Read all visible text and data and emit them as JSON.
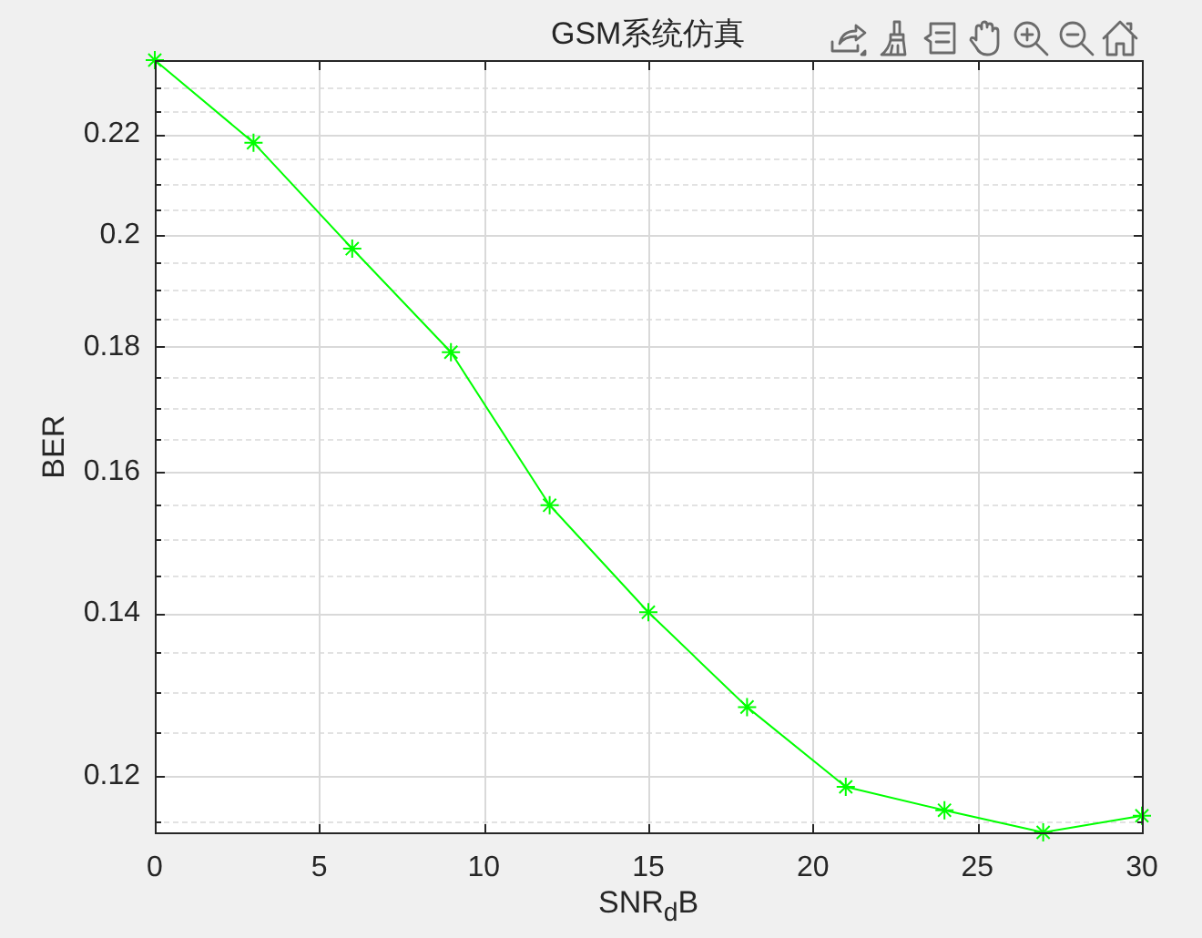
{
  "chart_data": {
    "type": "line",
    "title": "GSM系统仿真",
    "xlabel": "SNR$_{d}$B",
    "ylabel": "BER",
    "x": [
      0,
      3,
      6,
      9,
      12,
      15,
      18,
      21,
      24,
      27,
      30
    ],
    "series": [
      {
        "color": "#00ff00",
        "values": [
          0.236,
          0.2183,
          0.1975,
          0.1791,
          0.155,
          0.1401,
          0.1281,
          0.1188,
          0.1162,
          0.1138,
          0.1156
        ]
      }
    ],
    "xlim": [
      0,
      30
    ],
    "xticks": [
      0,
      5,
      10,
      15,
      20,
      25,
      30
    ],
    "ylim": [
      0.1138,
      0.236
    ],
    "yticks": [
      {
        "value": 0.115,
        "label": null
      },
      0.12,
      {
        "value": 0.125,
        "label": null
      },
      {
        "value": 0.13,
        "label": null
      },
      {
        "value": 0.135,
        "label": null
      },
      0.14,
      {
        "value": 0.145,
        "label": null
      },
      {
        "value": 0.15,
        "label": null
      },
      {
        "value": 0.155,
        "label": null
      },
      0.16,
      {
        "value": 0.165,
        "label": null
      },
      {
        "value": 0.17,
        "label": null
      },
      {
        "value": 0.175,
        "label": null
      },
      0.18,
      {
        "value": 0.185,
        "label": null
      },
      {
        "value": 0.19,
        "label": null
      },
      {
        "value": 0.195,
        "label": null
      },
      0.2,
      {
        "value": 0.205,
        "label": null
      },
      {
        "value": 0.21,
        "label": null
      },
      {
        "value": 0.215,
        "label": null
      },
      0.22,
      {
        "value": 0.225,
        "label": null
      },
      {
        "value": 0.23,
        "label": null
      }
    ],
    "log": "y",
    "grid": true,
    "marker": "cross",
    "line_style": "solid"
  }
}
